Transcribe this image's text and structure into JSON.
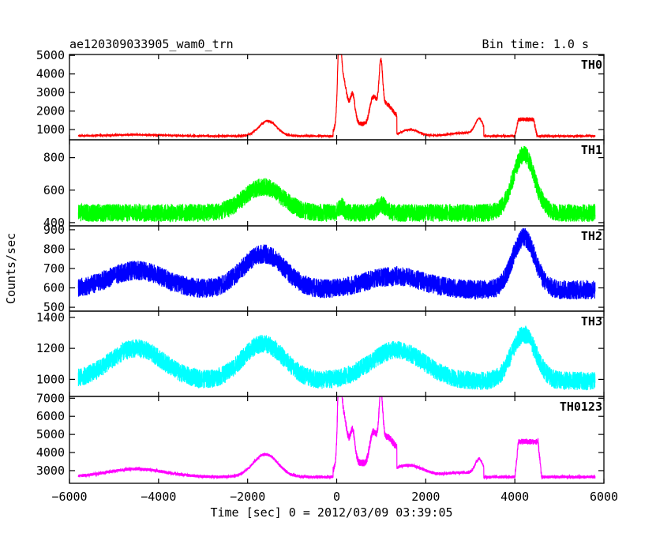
{
  "figure": {
    "title_left": "ae120309033905_wam0_trn",
    "title_right": "Bin time: 1.0 s",
    "ylabel": "Counts/sec",
    "xlabel": "Time [sec] 0 = 2012/03/09 03:39:05"
  },
  "chart_data": {
    "type": "line",
    "xlim": [
      -6000,
      6000
    ],
    "x_ticks": [
      -6000,
      -4000,
      -2000,
      0,
      2000,
      4000,
      6000
    ],
    "x_tick_labels": [
      "−6000",
      "−4000",
      "−2000",
      "0",
      "2000",
      "4000",
      "6000"
    ],
    "x_range": [
      -5800,
      5800
    ],
    "panels": [
      {
        "name": "TH0",
        "color": "#ff0000",
        "ylim": [
          450,
          5050
        ],
        "y_ticks": [
          1000,
          2000,
          3000,
          4000,
          5000
        ],
        "y_tick_labels": [
          "1000",
          "2000",
          "3000",
          "4000",
          "5000"
        ],
        "baseline": 650,
        "slope": 0,
        "orbital_amp": 80,
        "noise": 50,
        "bumps": [
          {
            "c": -4500,
            "w": 650,
            "h": 70
          },
          {
            "c": -1550,
            "w": 200,
            "h": 820
          },
          {
            "c": 1650,
            "w": 200,
            "h": 350
          },
          {
            "c": 2900,
            "w": 350,
            "h": 180
          },
          {
            "c": 3200,
            "w": 90,
            "h": 820
          }
        ],
        "flare_scale": 1.0,
        "drop_end": 3300,
        "plateau": {
          "start": 4000,
          "end": 4500,
          "h": 900,
          "noise": 110
        }
      },
      {
        "name": "TH1",
        "color": "#00ff00",
        "ylim": [
          380,
          910
        ],
        "y_ticks": [
          400,
          600,
          800
        ],
        "y_tick_labels": [
          "400",
          "600",
          "800"
        ],
        "baseline": 460,
        "slope": 0,
        "orbital_amp": 0,
        "noise": 55,
        "bumps": [
          {
            "c": -1650,
            "w": 420,
            "h": 160
          },
          {
            "c": 4200,
            "w": 240,
            "h": 360
          },
          {
            "c": 1000,
            "w": 100,
            "h": 50
          },
          {
            "c": 100,
            "w": 60,
            "h": 40
          }
        ],
        "flare_scale": 0.0,
        "drop_end": 0,
        "plateau": null
      },
      {
        "name": "TH2",
        "color": "#0000ff",
        "ylim": [
          480,
          920
        ],
        "y_ticks": [
          500,
          600,
          700,
          800,
          900
        ],
        "y_tick_labels": [
          "500",
          "600",
          "700",
          "800",
          "900"
        ],
        "baseline": 590,
        "slope": 0,
        "orbital_amp": 0,
        "noise": 50,
        "bumps": [
          {
            "c": -4500,
            "w": 620,
            "h": 100
          },
          {
            "c": -1650,
            "w": 470,
            "h": 185
          },
          {
            "c": 1300,
            "w": 650,
            "h": 70
          },
          {
            "c": 4200,
            "w": 250,
            "h": 270
          }
        ],
        "flare_scale": 0.0,
        "drop_end": 0,
        "plateau": null
      },
      {
        "name": "TH3",
        "color": "#00ffff",
        "ylim": [
          890,
          1440
        ],
        "y_ticks": [
          1000,
          1200,
          1400
        ],
        "y_tick_labels": [
          "1000",
          "1200",
          "1400"
        ],
        "baseline": 990,
        "slope": 0,
        "orbital_amp": 0,
        "noise": 60,
        "bumps": [
          {
            "c": -4500,
            "w": 600,
            "h": 210
          },
          {
            "c": -1650,
            "w": 470,
            "h": 240
          },
          {
            "c": 1350,
            "w": 600,
            "h": 200
          },
          {
            "c": 4200,
            "w": 270,
            "h": 300
          }
        ],
        "flare_scale": 0.0,
        "drop_end": 0,
        "plateau": null
      },
      {
        "name": "TH0123",
        "color": "#ff00ff",
        "ylim": [
          2300,
          7100
        ],
        "y_ticks": [
          3000,
          4000,
          5000,
          6000,
          7000
        ],
        "y_tick_labels": [
          "3000",
          "4000",
          "5000",
          "6000",
          "7000"
        ],
        "baseline": 2650,
        "slope": 0,
        "orbital_amp": 0,
        "noise": 80,
        "bumps": [
          {
            "c": -4500,
            "w": 650,
            "h": 440
          },
          {
            "c": -1600,
            "w": 280,
            "h": 1250
          },
          {
            "c": 1600,
            "w": 350,
            "h": 650
          },
          {
            "c": 2800,
            "w": 350,
            "h": 250
          },
          {
            "c": 3200,
            "w": 90,
            "h": 880
          }
        ],
        "flare_scale": 1.15,
        "drop_end": 3300,
        "plateau": {
          "start": 4000,
          "end": 4600,
          "h": 1950,
          "noise": 160
        }
      }
    ],
    "flares": [
      {
        "c": 60,
        "w": 35,
        "h": 4200
      },
      {
        "c": 130,
        "w": 80,
        "h": 2400
      },
      {
        "c": 280,
        "w": 120,
        "h": 800
      },
      {
        "c": 360,
        "w": 50,
        "h": 1200
      },
      {
        "c": 600,
        "w": 90,
        "h": 200
      },
      {
        "c": 780,
        "w": 60,
        "h": 1100
      },
      {
        "c": 870,
        "w": 60,
        "h": 1000
      },
      {
        "c": 990,
        "w": 40,
        "h": 2700
      },
      {
        "c": 1080,
        "w": 120,
        "h": 1100
      },
      {
        "c": 1300,
        "w": 150,
        "h": 700
      }
    ],
    "flare_window": [
      -80,
      1350
    ],
    "flare_floor": 1250
  }
}
